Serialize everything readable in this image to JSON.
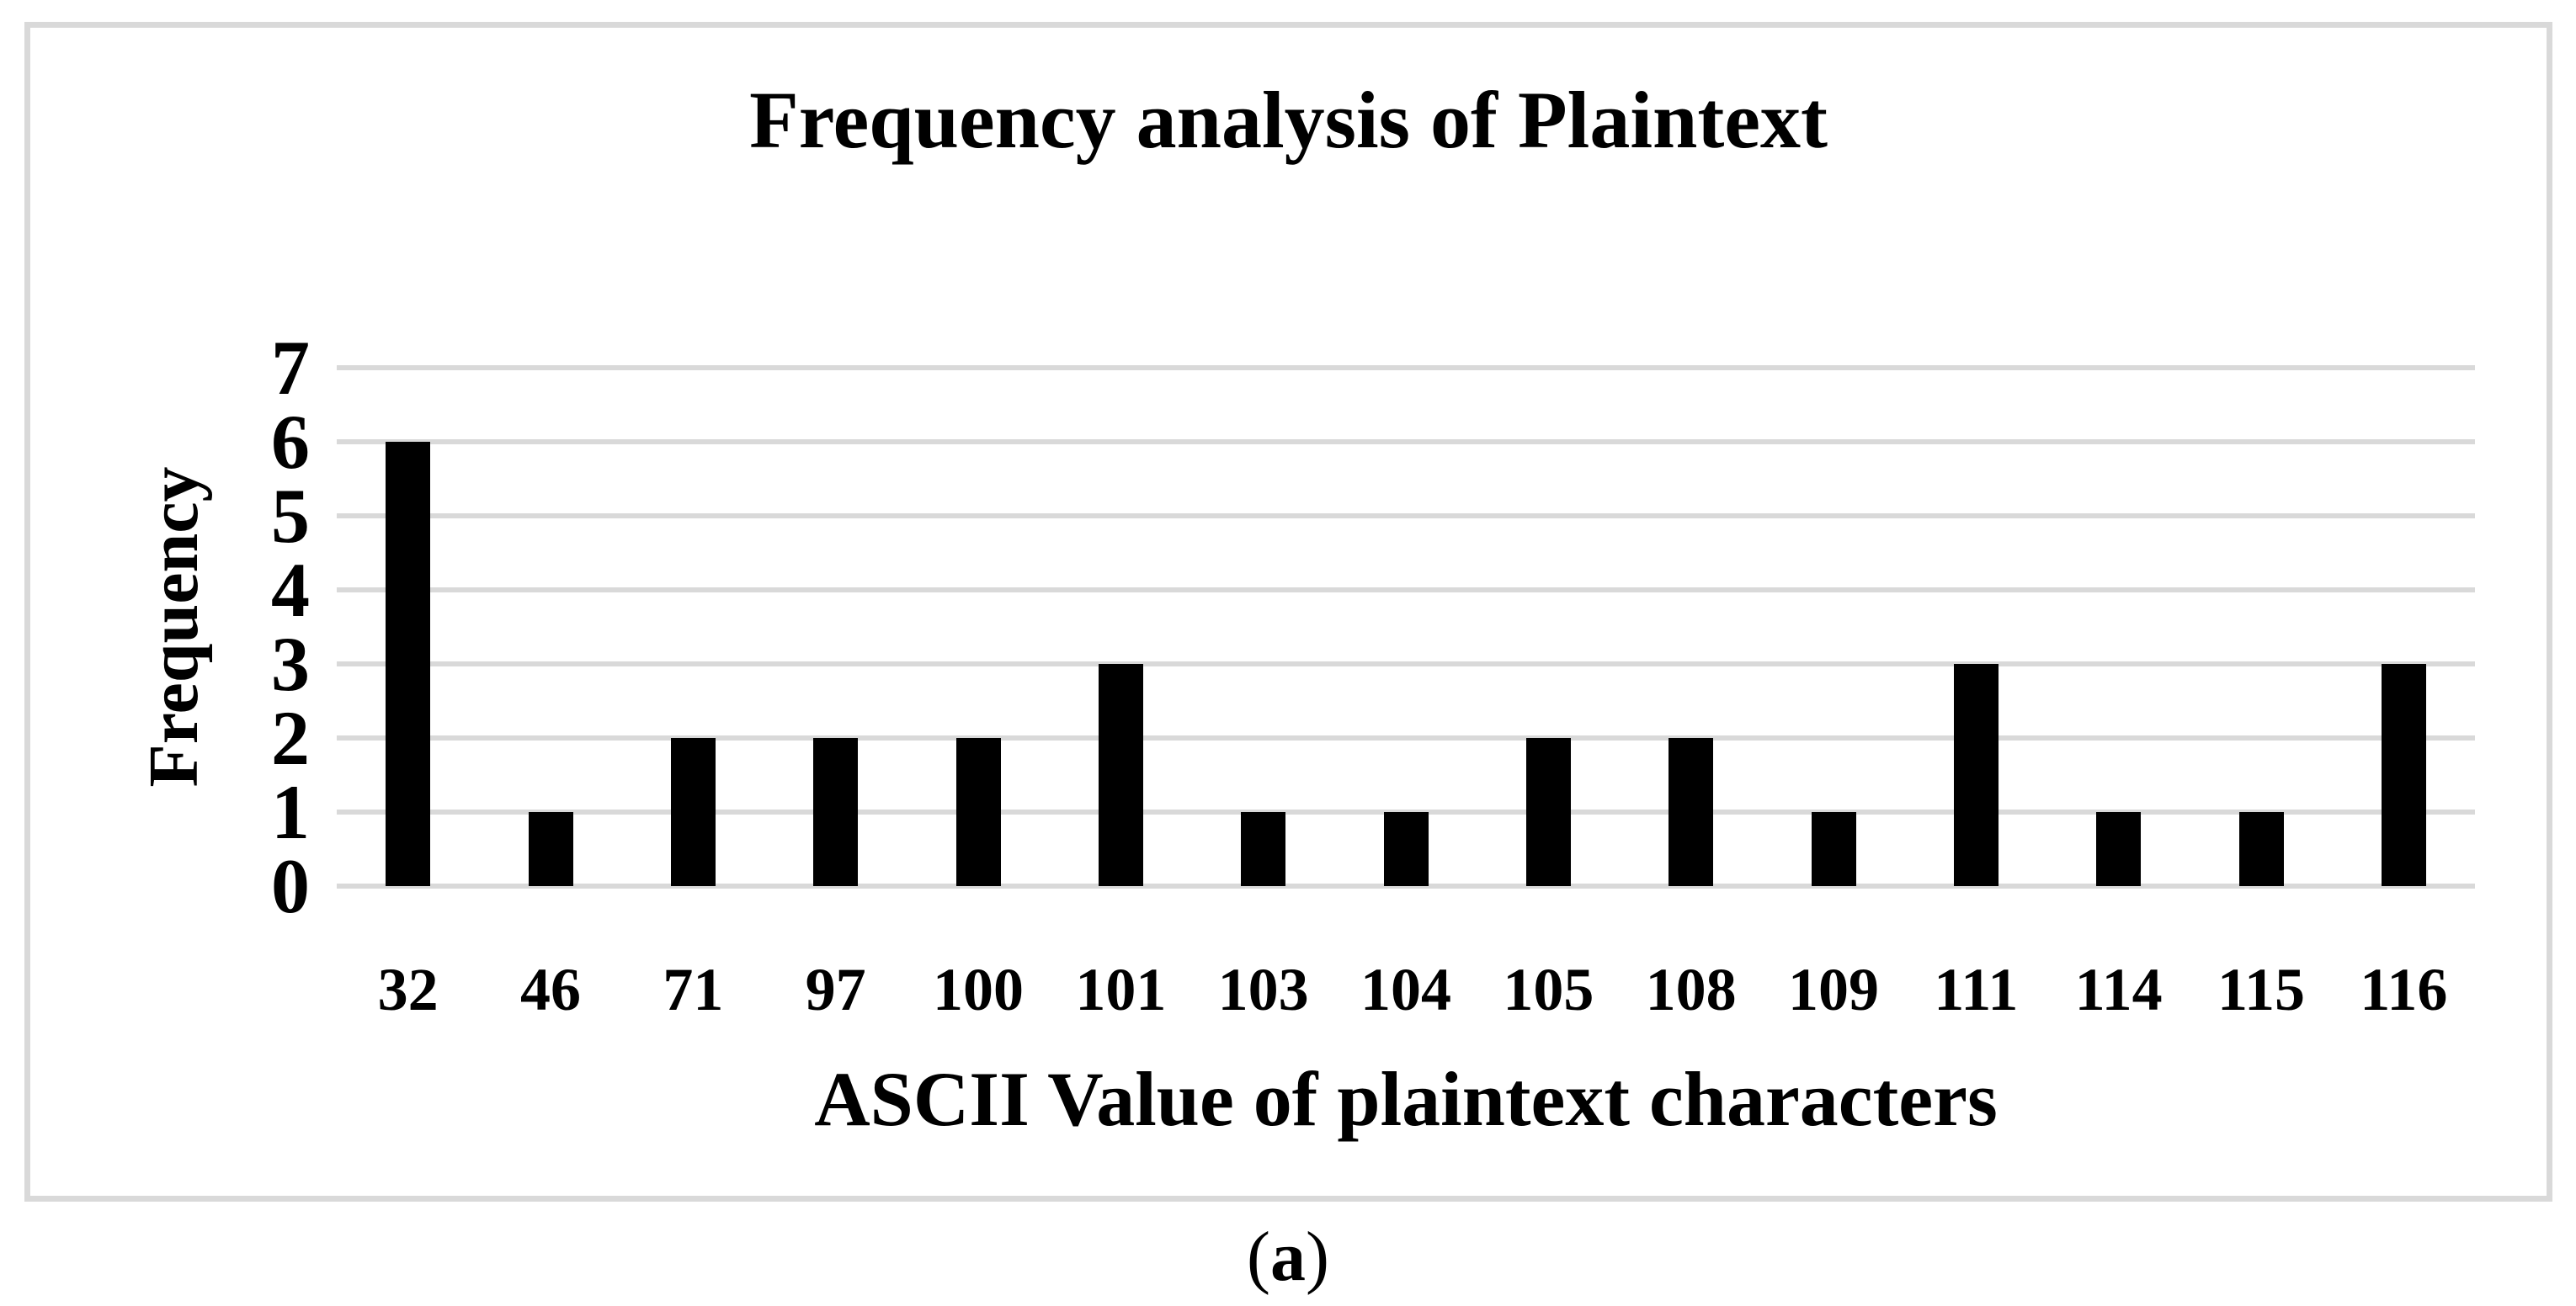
{
  "page": {
    "background": "#ffffff"
  },
  "figure": {
    "border_color": "#d9d9d9",
    "caption": {
      "prefix": "(",
      "label": "a",
      "suffix": ")"
    }
  },
  "chart_data": {
    "type": "bar",
    "title": "Frequency analysis of Plaintext",
    "xlabel": "ASCII Value of plaintext characters",
    "ylabel": "Frequency",
    "categories": [
      "32",
      "46",
      "71",
      "97",
      "100",
      "101",
      "103",
      "104",
      "105",
      "108",
      "109",
      "111",
      "114",
      "115",
      "116"
    ],
    "values": [
      6,
      1,
      2,
      2,
      2,
      3,
      1,
      1,
      2,
      2,
      1,
      3,
      1,
      1,
      3
    ],
    "ylim": [
      0,
      7
    ],
    "yticks": [
      0,
      1,
      2,
      3,
      4,
      5,
      6,
      7
    ],
    "grid": true,
    "legend_position": "none",
    "bar_color": "#000000",
    "gridline_color": "#d9d9d9",
    "text_color": "#000000"
  }
}
